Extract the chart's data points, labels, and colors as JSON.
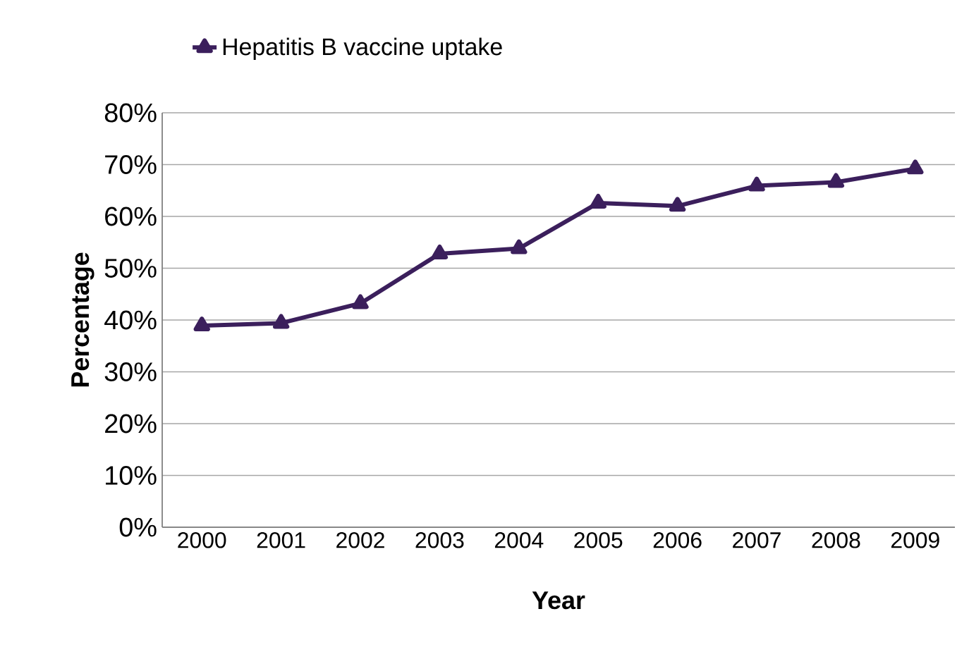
{
  "chart_data": {
    "type": "line",
    "xlabel": "Year",
    "ylabel": "Percentage",
    "categories": [
      "2000",
      "2001",
      "2002",
      "2003",
      "2004",
      "2005",
      "2006",
      "2007",
      "2008",
      "2009"
    ],
    "series": [
      {
        "name": "Hepatitis B vaccine uptake",
        "color": "#3b1f5c",
        "values": [
          38.9,
          39.4,
          43.2,
          52.8,
          53.8,
          62.6,
          62.0,
          65.9,
          66.6,
          69.2
        ]
      }
    ],
    "ylim": [
      0,
      80
    ],
    "yticks": [
      {
        "value": 0,
        "label": "0%"
      },
      {
        "value": 10,
        "label": "10%"
      },
      {
        "value": 20,
        "label": "20%"
      },
      {
        "value": 30,
        "label": "30%"
      },
      {
        "value": 40,
        "label": "40%"
      },
      {
        "value": 50,
        "label": "50%"
      },
      {
        "value": 60,
        "label": "60%"
      },
      {
        "value": 70,
        "label": "70%"
      },
      {
        "value": 80,
        "label": "80%"
      }
    ],
    "grid": "y",
    "legend": "top",
    "marker": "triangle",
    "line_style": "solid"
  }
}
